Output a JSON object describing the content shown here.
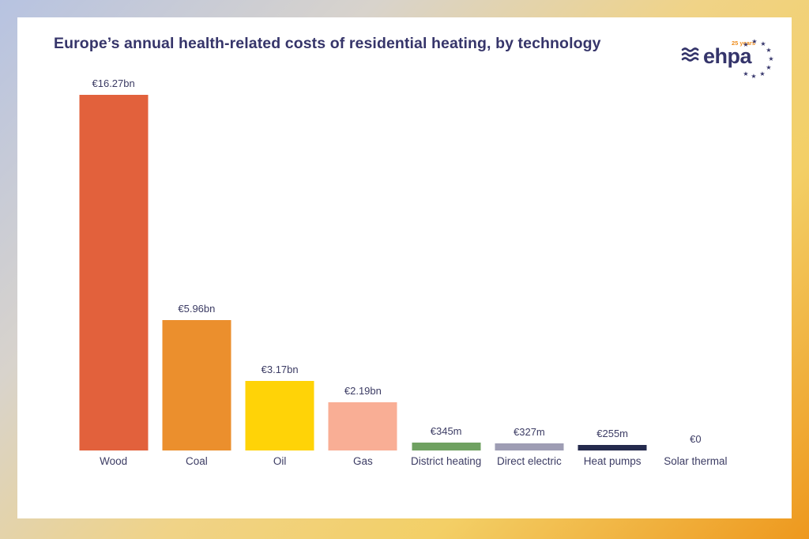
{
  "page": {
    "title": "Europe’s annual health-related costs of residential heating, by technology"
  },
  "logo": {
    "text": "ehpa",
    "badge": "25 years"
  },
  "colors": {
    "title_text": "#36356a",
    "label_text": "#3c3c64",
    "card_background": "#ffffff",
    "frame_gradient": [
      "#b7c3e1",
      "#d8d3cc",
      "#f0d387",
      "#ee981d"
    ],
    "logo_navy": "#35356b",
    "logo_badge_orange": "#ee8d1e"
  },
  "chart_data": {
    "type": "bar",
    "title": "Europe’s annual health-related costs of residential heating, by technology",
    "xlabel": "",
    "ylabel": "",
    "grid": false,
    "legend": false,
    "ylim_million_eur": [
      0,
      16270
    ],
    "categories": [
      "Wood",
      "Coal",
      "Oil",
      "Gas",
      "District heating",
      "Direct electric",
      "Heat pumps",
      "Solar thermal"
    ],
    "values_million_eur": [
      16270,
      5960,
      3170,
      2190,
      345,
      327,
      255,
      0
    ],
    "value_labels": [
      "€16.27bn",
      "€5.96bn",
      "€3.17bn",
      "€2.19bn",
      "€345m",
      "€327m",
      "€255m",
      "€0"
    ],
    "bar_colors": [
      "#e2613c",
      "#eb8f2d",
      "#ffd307",
      "#f9ae95",
      "#6fa161",
      "#9e9db4",
      "#252a4d",
      null
    ]
  }
}
